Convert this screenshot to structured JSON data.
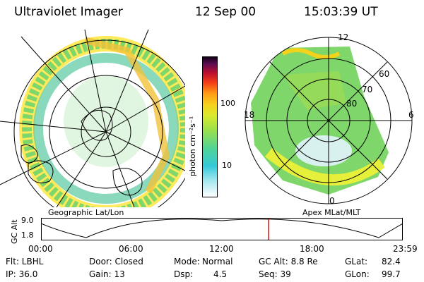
{
  "header": {
    "instrument": "Ultraviolet Imager",
    "date": "12 Sep 00",
    "time": "15:03:39 UT"
  },
  "left_panel": {
    "caption": "Geographic Lat/Lon"
  },
  "right_panel": {
    "caption": "Apex MLat/MLT",
    "mlt_labels": {
      "top": "12",
      "left": "18",
      "right": "6",
      "bottom": "0"
    },
    "lat_labels": [
      "60",
      "70",
      "80"
    ]
  },
  "colorbar": {
    "unit": "photon cm⁻²s⁻¹",
    "ticks": [
      "100",
      "10"
    ],
    "scale": "log"
  },
  "alt_plot": {
    "ylabel": "GC Alt",
    "yticks": [
      "9.0",
      "1.8"
    ],
    "xticks": [
      "00:00",
      "06:00",
      "12:00",
      "18:00",
      "23:59"
    ],
    "marker_color": "#e01010"
  },
  "status": {
    "filter": "Flt: LBHL",
    "door": "Door: Closed",
    "mode_label": "Mode:",
    "mode_value": "Normal",
    "gc_alt": "GC Alt: 8.8 Re",
    "glat_label": "GLat:",
    "glat_value": "82.4",
    "ip": "IP: 36.0",
    "gain": "Gain: 13",
    "dsp_label": "Dsp:",
    "dsp_value": "4.5",
    "seq": "Seq: 39",
    "glon_label": "GLon:",
    "glon_value": "99.7"
  }
}
